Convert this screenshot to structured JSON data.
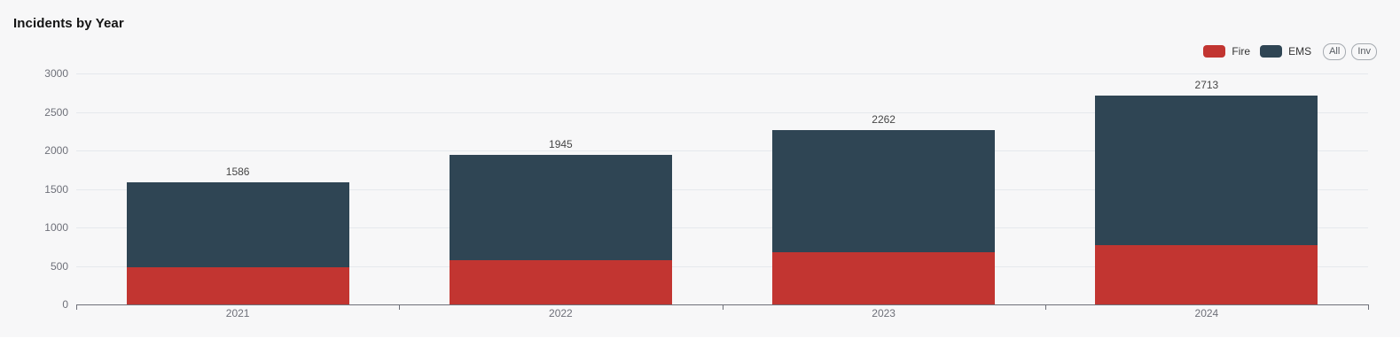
{
  "header": {
    "title": "Incidents by Year"
  },
  "legend": {
    "items": [
      {
        "label": "Fire",
        "color": "#c23531"
      },
      {
        "label": "EMS",
        "color": "#2f4554"
      }
    ],
    "buttons": [
      {
        "label": "All"
      },
      {
        "label": "Inv"
      }
    ]
  },
  "chart_data": {
    "type": "bar",
    "stacked": true,
    "title": "Incidents by Year",
    "categories": [
      "2021",
      "2022",
      "2023",
      "2024"
    ],
    "series": [
      {
        "name": "Fire",
        "color": "#c23531",
        "values": [
          480,
          575,
          680,
          770
        ]
      },
      {
        "name": "EMS",
        "color": "#2f4554",
        "values": [
          1106,
          1370,
          1582,
          1943
        ]
      }
    ],
    "totals": [
      1586,
      1945,
      2262,
      2713
    ],
    "total_labels": [
      "1586",
      "1945",
      "2262",
      "2713"
    ],
    "xlabel": "",
    "ylabel": "",
    "ylim": [
      0,
      3000
    ],
    "y_ticks": [
      0,
      500,
      1000,
      1500,
      2000,
      2500,
      3000
    ],
    "grid": true,
    "legend_position": "top-right",
    "colors": {
      "background": "#f7f7f8",
      "gridline": "#e5e8ed",
      "axis": "#6E7079",
      "axis_text": "#6E7079",
      "value_label": "#464646"
    }
  }
}
